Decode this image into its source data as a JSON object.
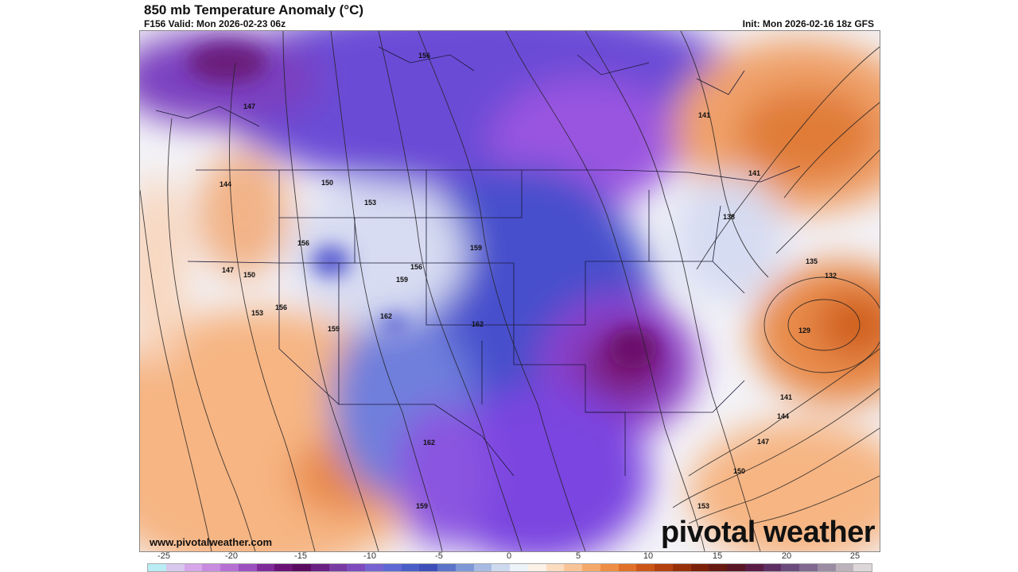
{
  "header": {
    "title": "850 mb Temperature Anomaly (°C)",
    "valid": "F156 Valid: Mon 2026-02-23 06z",
    "init": "Init: Mon 2026-02-16 18z GFS"
  },
  "footer": {
    "website": "www.pivotalweather.com",
    "brand": "pivotal weather"
  },
  "contour_labels": [
    "156",
    "147",
    "144",
    "150",
    "153",
    "156",
    "159",
    "156",
    "147",
    "150",
    "153",
    "156",
    "159",
    "162",
    "159",
    "162",
    "162",
    "159",
    "141",
    "141",
    "138",
    "135",
    "132",
    "129",
    "141",
    "144",
    "147",
    "150",
    "153"
  ],
  "colorbar": {
    "tick_labels": [
      "-25",
      "-20",
      "-15",
      "-10",
      "-5",
      "0",
      "5",
      "10",
      "15",
      "20",
      "25"
    ],
    "colors": [
      "#b9ecf4",
      "#d8c8ee",
      "#d7a6ea",
      "#c98be0",
      "#b670d4",
      "#9c50bf",
      "#7f2a99",
      "#6a1276",
      "#5a0a5f",
      "#6a1f82",
      "#7a3aa3",
      "#7d4bbe",
      "#7663d1",
      "#5e68d4",
      "#4a5ec8",
      "#3e4fb9",
      "#5b73c8",
      "#7e97d6",
      "#a7bae4",
      "#cdd9ef",
      "#eef2f9",
      "#fdf2e8",
      "#fbdcbf",
      "#f8c497",
      "#f4a96b",
      "#ee8e44",
      "#e1702a",
      "#cc5518",
      "#b3400f",
      "#973008",
      "#7d2008",
      "#661a12",
      "#5a1525",
      "#5a1c45",
      "#5f2e63",
      "#6b4a7d",
      "#80688f",
      "#9b8ca3",
      "#bcb2bb",
      "#ddd7da"
    ]
  }
}
